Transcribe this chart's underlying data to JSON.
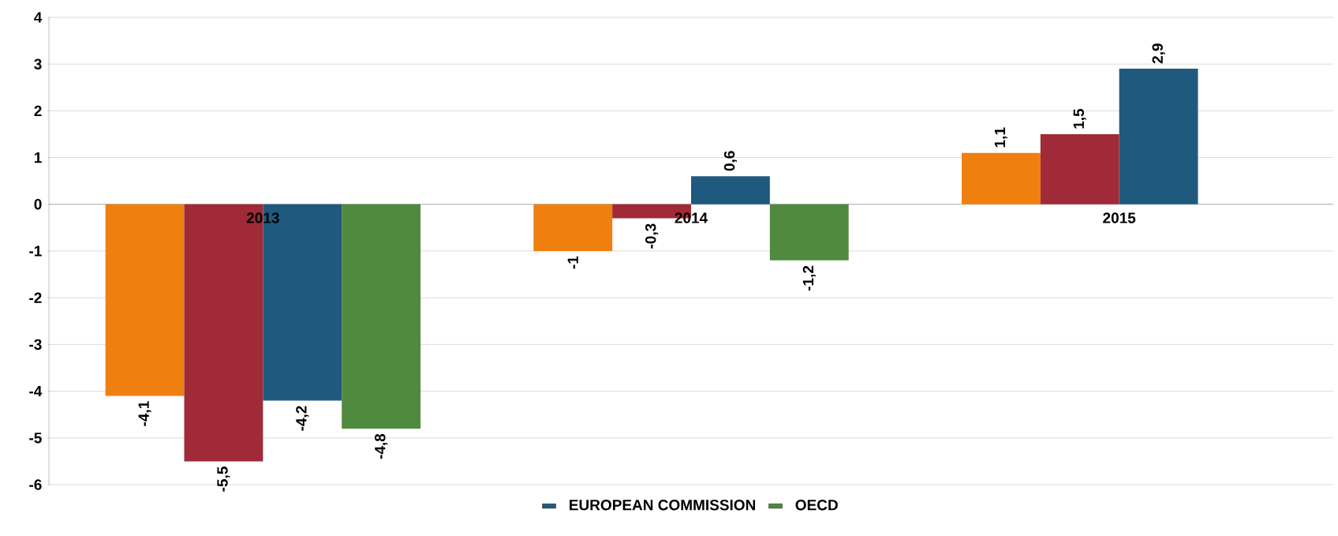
{
  "chart_data": {
    "type": "bar",
    "categories": [
      "2013",
      "2014",
      "2015"
    ],
    "series": [
      {
        "color": "#ef7f0f",
        "values": [
          -4.1,
          -1,
          1.1
        ],
        "value_labels": [
          "-4,1",
          "-1",
          "1,1"
        ]
      },
      {
        "color": "#a02a37",
        "values": [
          -5.5,
          -0.3,
          1.5
        ],
        "value_labels": [
          "-5,5",
          "-0,3",
          "1,5"
        ]
      },
      {
        "name": "EUROPEAN COMMISSION",
        "color": "#1f5a7e",
        "values": [
          -4.2,
          0.6,
          2.9
        ],
        "value_labels": [
          "-4,2",
          "0,6",
          "2,9"
        ]
      },
      {
        "name": "OECD",
        "color": "#4f8a3e",
        "values": [
          -4.8,
          -1.2,
          null
        ],
        "value_labels": [
          "-4,8",
          "-1,2",
          null
        ]
      }
    ],
    "ylim": [
      -6,
      4
    ],
    "yticks": [
      -6,
      -5,
      -4,
      -3,
      -2,
      -1,
      0,
      1,
      2,
      3,
      4
    ],
    "grid": "y",
    "legend": "bottom"
  }
}
